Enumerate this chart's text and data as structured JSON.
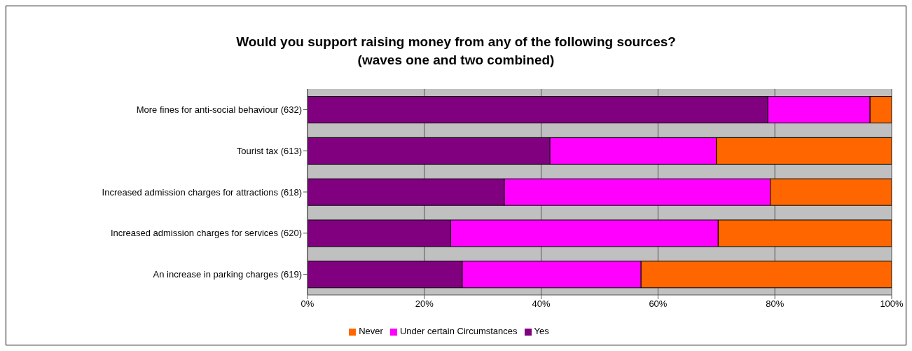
{
  "chart_data": {
    "type": "bar",
    "orientation": "horizontal",
    "stacked": true,
    "title": "Would you support raising money from any of the following sources?\n(waves one and two combined)",
    "categories": [
      "More fines for anti-social behaviour (632)",
      "Tourist tax (613)",
      "Increased admission charges for attractions (618)",
      "Increased admission charges for services (620)",
      "An increase in parking charges (619)"
    ],
    "series": [
      {
        "name": "Yes",
        "color": "#800080",
        "values": [
          78.8,
          41.5,
          33.7,
          24.5,
          26.5
        ]
      },
      {
        "name": "Under certain Circumstances",
        "color": "#ff00ff",
        "values": [
          17.5,
          28.5,
          45.5,
          45.8,
          30.6
        ]
      },
      {
        "name": "Never",
        "color": "#ff6600",
        "values": [
          3.7,
          30.0,
          20.8,
          29.7,
          42.9
        ]
      }
    ],
    "xlim": [
      0,
      100
    ],
    "xticks": [
      {
        "value": 0,
        "label": "0%"
      },
      {
        "value": 20,
        "label": "20%"
      },
      {
        "value": 40,
        "label": "40%"
      },
      {
        "value": 60,
        "label": "60%"
      },
      {
        "value": 80,
        "label": "80%"
      },
      {
        "value": 100,
        "label": "100%"
      }
    ],
    "grid": "x",
    "legend": "bottom"
  }
}
